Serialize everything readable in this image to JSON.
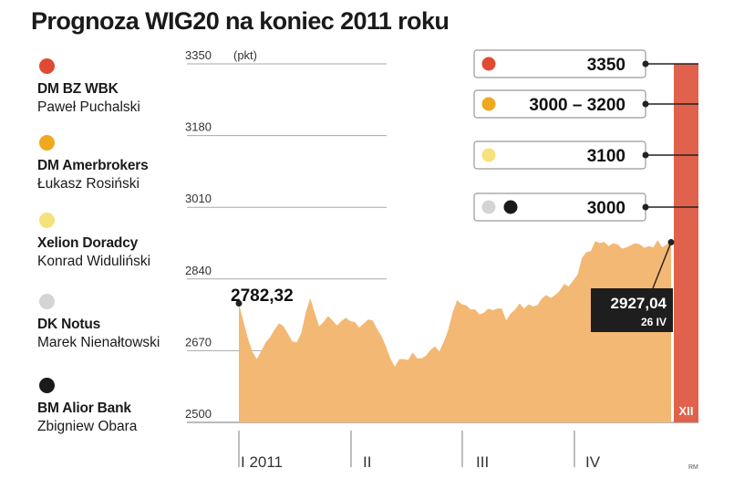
{
  "title": "Prognoza WIG20 na koniec 2011 roku",
  "analysts": [
    {
      "firm": "DM BZ WBK",
      "person": "Paweł Puchalski",
      "color": "#e04a32"
    },
    {
      "firm": "DM Amerbrokers",
      "person": "Łukasz Rosiński",
      "color": "#f0a81e"
    },
    {
      "firm": "Xelion Doradcy",
      "person": "Konrad Widuliński",
      "color": "#f6e27a"
    },
    {
      "firm": "DK Notus",
      "person": "Marek Nienałtowski",
      "color": "#d4d4d4"
    },
    {
      "firm": "BM Alior Bank",
      "person": "Zbigniew Obara",
      "color": "#1a1a1a"
    }
  ],
  "chart_data": {
    "type": "area",
    "title": "Prognoza WIG20 na koniec 2011 roku",
    "y_unit": "(pkt)",
    "ylim": [
      2500,
      3350
    ],
    "y_ticks": [
      "3350",
      "3180",
      "3010",
      "2840",
      "2670",
      "2500"
    ],
    "x_ticks": [
      "I 2011",
      "II",
      "III",
      "IV"
    ],
    "year_end_label": "XII",
    "area_color": "#f3b873",
    "series": [
      {
        "values": [
          2782.32,
          2740,
          2700,
          2668,
          2650,
          2668,
          2690,
          2702,
          2720,
          2735,
          2728,
          2710,
          2692,
          2690,
          2712,
          2760,
          2795,
          2760,
          2728,
          2738,
          2752,
          2742,
          2730,
          2740,
          2748,
          2740,
          2738,
          2725,
          2734,
          2744,
          2742,
          2722,
          2705,
          2680,
          2652,
          2632,
          2650,
          2650,
          2648,
          2666,
          2652,
          2652,
          2658,
          2672,
          2680,
          2668,
          2692,
          2720,
          2762,
          2790,
          2780,
          2778,
          2768,
          2768,
          2756,
          2760,
          2770,
          2766,
          2770,
          2770,
          2742,
          2758,
          2768,
          2782,
          2770,
          2780,
          2775,
          2778,
          2794,
          2802,
          2795,
          2802,
          2812,
          2828,
          2822,
          2836,
          2850,
          2890,
          2904,
          2906,
          2930,
          2925,
          2928,
          2918,
          2925,
          2922,
          2912,
          2915,
          2920,
          2925,
          2922,
          2914,
          2918,
          2915,
          2932,
          2915,
          2922,
          2927.04
        ]
      }
    ],
    "start_value": "2782,32",
    "last_value": "2927,04",
    "last_date": "26 IV",
    "forecasts": [
      {
        "value": 3350,
        "label": "3350",
        "colors": [
          "#e04a32"
        ]
      },
      {
        "value": 3200,
        "label": "3000 – 3200",
        "colors": [
          "#f0a81e"
        ]
      },
      {
        "value": 3100,
        "label": "3100",
        "colors": [
          "#f6e27a"
        ]
      },
      {
        "value": 3000,
        "label": "3000",
        "colors": [
          "#d4d4d4",
          "#1a1a1a"
        ]
      }
    ],
    "bar_color": "#e0624c",
    "credit": "RM"
  }
}
